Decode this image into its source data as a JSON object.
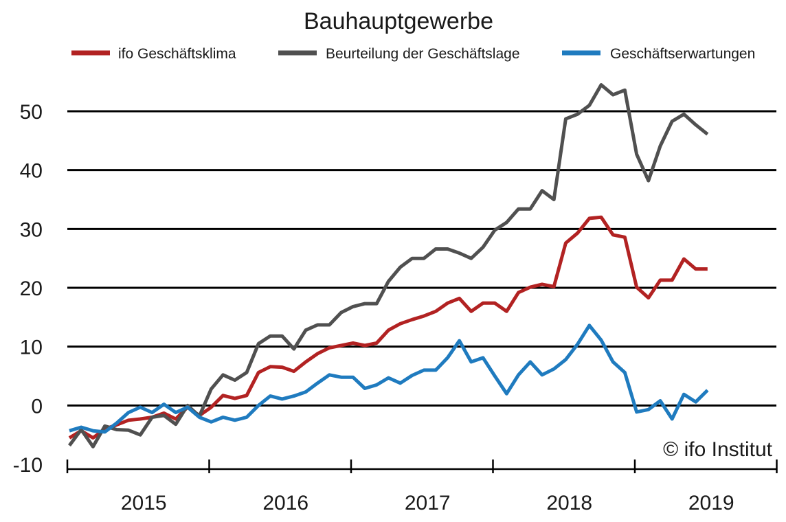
{
  "chart_data": {
    "type": "line",
    "title": "Bauhauptgewerbe",
    "copyright": "© ifo Institut",
    "xlabel": "",
    "ylabel": "",
    "ylim": [
      -10,
      55
    ],
    "yticks": [
      50,
      40,
      30,
      20,
      10,
      0,
      -10
    ],
    "x_tick_labels": [
      "2015",
      "2016",
      "2017",
      "2018",
      "2019"
    ],
    "x_start": "2015-01",
    "legend_position": "top",
    "grid": true,
    "series": [
      {
        "name": "ifo Geschäftsklima",
        "color": "#b22222",
        "values": [
          -5.5,
          -4.3,
          -5.5,
          -4.0,
          -3.3,
          -2.5,
          -2.3,
          -2.0,
          -1.3,
          -2.3,
          -0.3,
          -1.7,
          -0.3,
          1.7,
          1.2,
          1.7,
          5.6,
          6.6,
          6.5,
          5.8,
          7.4,
          8.8,
          9.8,
          10.2,
          10.6,
          10.2,
          10.6,
          12.8,
          13.9,
          14.6,
          15.2,
          16.0,
          17.4,
          18.2,
          16.0,
          17.4,
          17.4,
          16.0,
          19.2,
          20.1,
          20.6,
          20.2,
          27.6,
          29.3,
          31.8,
          32.0,
          29.0,
          28.6,
          20.1,
          18.3,
          21.3,
          21.3,
          24.9,
          23.2,
          23.2
        ]
      },
      {
        "name": "Beurteilung der Geschäftslage",
        "color": "#505050",
        "values": [
          -6.8,
          -4.1,
          -7.0,
          -3.5,
          -4.1,
          -4.2,
          -5.0,
          -2.0,
          -1.7,
          -3.2,
          0.0,
          -1.8,
          2.8,
          5.2,
          4.3,
          5.6,
          10.5,
          11.8,
          11.8,
          9.6,
          12.8,
          13.7,
          13.7,
          15.8,
          16.8,
          17.3,
          17.3,
          21.1,
          23.5,
          25.0,
          25.0,
          26.6,
          26.6,
          25.9,
          25.0,
          26.9,
          29.8,
          31.1,
          33.4,
          33.4,
          36.5,
          35.0,
          48.7,
          49.5,
          51.0,
          54.5,
          52.8,
          53.6,
          42.7,
          38.2,
          44.1,
          48.3,
          49.5,
          47.7,
          46.1
        ]
      },
      {
        "name": "Geschäftserwartungen",
        "color": "#1f7bbf",
        "values": [
          -4.3,
          -3.7,
          -4.3,
          -4.5,
          -3.0,
          -1.2,
          -0.3,
          -1.2,
          0.2,
          -1.2,
          -0.3,
          -2.0,
          -2.8,
          -2.0,
          -2.5,
          -2.0,
          0.0,
          1.6,
          1.1,
          1.6,
          2.3,
          3.8,
          5.2,
          4.8,
          4.8,
          2.9,
          3.5,
          4.7,
          3.8,
          5.1,
          6.0,
          6.0,
          8.1,
          11.0,
          7.4,
          8.1,
          5.0,
          2.0,
          5.2,
          7.4,
          5.2,
          6.2,
          7.8,
          10.4,
          13.6,
          11.1,
          7.4,
          5.6,
          -1.1,
          -0.7,
          0.8,
          -2.3,
          1.9,
          0.6,
          2.6
        ]
      }
    ]
  }
}
